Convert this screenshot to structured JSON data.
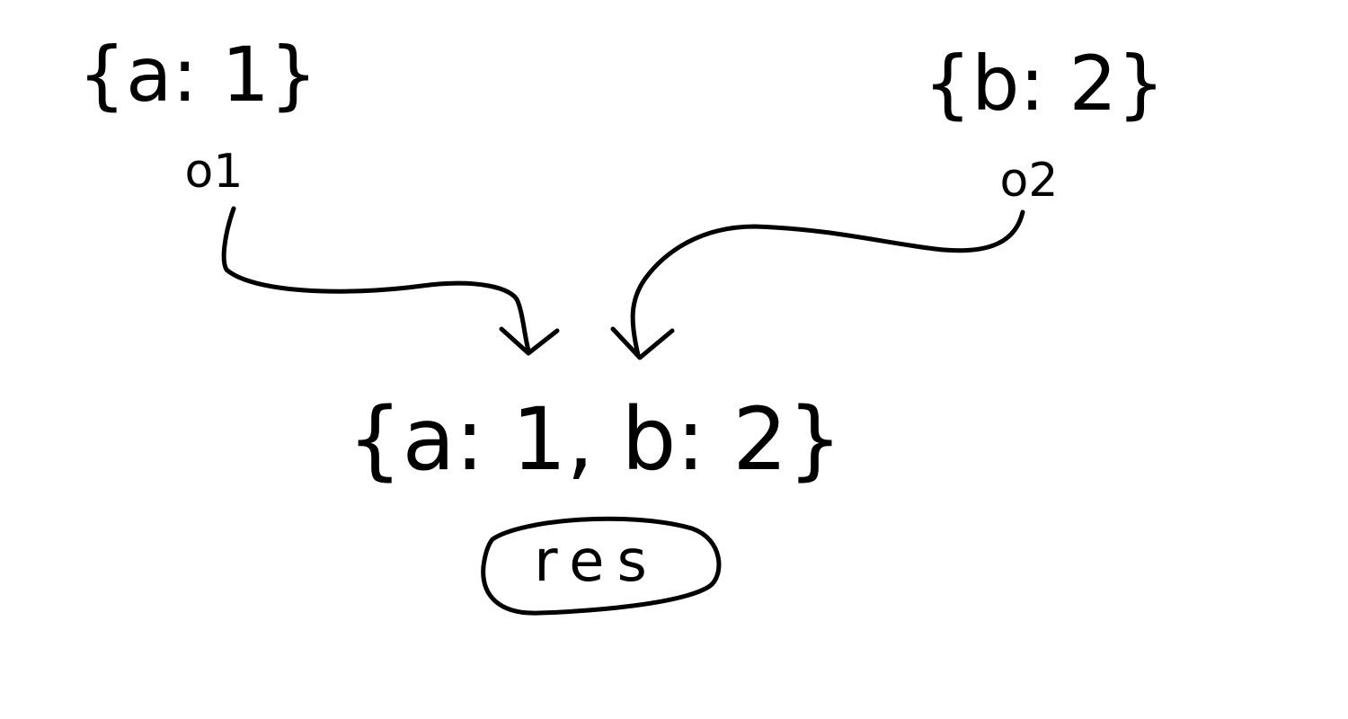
{
  "diagram": {
    "object_one": {
      "literal": "{a: 1}",
      "label": "o1"
    },
    "object_two": {
      "literal": "{b: 2}",
      "label": "o2"
    },
    "merged": {
      "literal": "{a: 1, b: 2}",
      "label": "res"
    }
  },
  "colors": {
    "ink": "#000000",
    "background": "#ffffff"
  }
}
